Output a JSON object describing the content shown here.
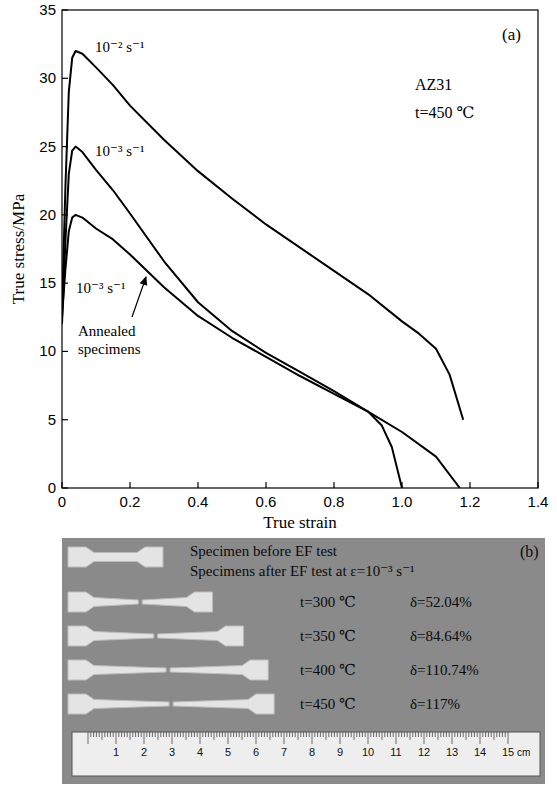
{
  "chart_data": {
    "type": "line",
    "panel": "(a)",
    "x_label": "True strain",
    "y_label": "True stress/MPa",
    "annotations": [
      "AZ31",
      "t=450 ℃",
      "Annealed specimens"
    ],
    "xlim": [
      0,
      1.4
    ],
    "ylim": [
      0,
      35
    ],
    "xticks": [
      0,
      0.2,
      0.4,
      0.6,
      0.8,
      {
        "value": 1,
        "label": "1.0"
      },
      1.2,
      1.4
    ],
    "yticks": [
      0,
      5,
      10,
      15,
      20,
      25,
      30,
      35
    ],
    "grid": false,
    "series": [
      {
        "name": "10⁻² s⁻¹",
        "color": "#000000",
        "x": [
          0,
          0.01,
          0.02,
          0.03,
          0.04,
          0.06,
          0.1,
          0.15,
          0.2,
          0.3,
          0.4,
          0.5,
          0.6,
          0.7,
          0.8,
          0.9,
          1.0,
          1.05,
          1.1,
          1.14,
          1.18
        ],
        "values": [
          13,
          22,
          29,
          31.5,
          32,
          31.8,
          30.8,
          29.5,
          28,
          25.5,
          23.2,
          21.2,
          19.3,
          17.6,
          15.9,
          14.2,
          12.2,
          11.3,
          10.2,
          8.3,
          5
        ]
      },
      {
        "name": "10⁻³ s⁻¹",
        "color": "#000000",
        "x": [
          0,
          0.01,
          0.02,
          0.03,
          0.04,
          0.06,
          0.1,
          0.15,
          0.2,
          0.3,
          0.4,
          0.5,
          0.6,
          0.7,
          0.8,
          0.9,
          0.94,
          0.97,
          1.0
        ],
        "values": [
          12,
          18,
          23,
          24.7,
          25,
          24.6,
          23.3,
          21.8,
          20.1,
          16.6,
          13.6,
          11.5,
          9.9,
          8.5,
          7.1,
          5.6,
          4.6,
          3,
          0
        ]
      },
      {
        "name": "10⁻³ s⁻¹",
        "color": "#000000",
        "x": [
          0,
          0.01,
          0.02,
          0.03,
          0.04,
          0.06,
          0.1,
          0.15,
          0.2,
          0.3,
          0.4,
          0.5,
          0.6,
          0.7,
          0.8,
          0.9,
          1.0,
          1.1,
          1.17
        ],
        "values": [
          12.5,
          16,
          18.8,
          19.8,
          20,
          19.8,
          19,
          18.2,
          17.1,
          14.7,
          12.6,
          11,
          9.6,
          8.2,
          6.9,
          5.6,
          4.1,
          2.3,
          0
        ]
      }
    ]
  },
  "photo": {
    "panel": "(b)",
    "caption_before": "Specimen before EF test",
    "caption_after": "Specimens after EF test at ε=10⁻³ s⁻¹",
    "specimens": [
      {
        "temperature": "t=300 ℃",
        "elongation": 52.04,
        "elongation_label": "δ=52.04%"
      },
      {
        "temperature": "t=350 ℃",
        "elongation": 84.64,
        "elongation_label": "δ=84.64%"
      },
      {
        "temperature": "t=400 ℃",
        "elongation": 110.74,
        "elongation_label": "δ=110.74%"
      },
      {
        "temperature": "t=450 ℃",
        "elongation": 117,
        "elongation_label": "δ=117%"
      }
    ],
    "ruler_labels": [
      1,
      2,
      3,
      4,
      5,
      6,
      7,
      8,
      9,
      10,
      11,
      12,
      13,
      14,
      15
    ],
    "ruler_unit": "cm"
  }
}
